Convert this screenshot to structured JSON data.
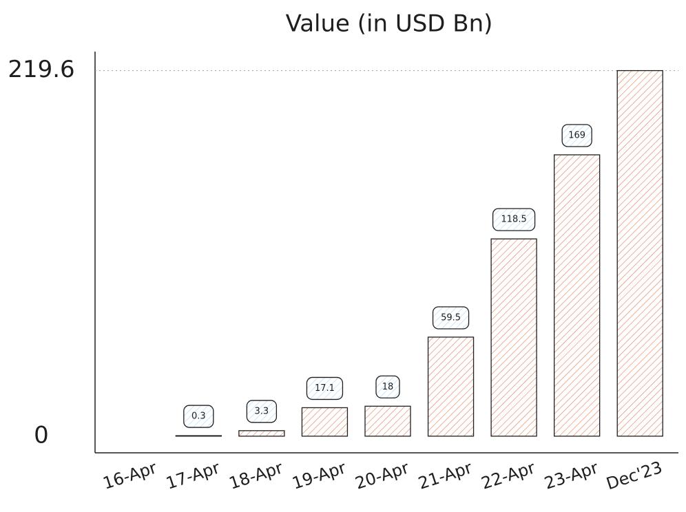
{
  "chart_data": {
    "type": "bar",
    "title": "Value (in USD Bn)",
    "categories": [
      "16-Apr",
      "17-Apr",
      "18-Apr",
      "19-Apr",
      "20-Apr",
      "21-Apr",
      "22-Apr",
      "23-Apr",
      "Dec'23"
    ],
    "values": [
      0,
      0.3,
      3.3,
      17.1,
      18,
      59.5,
      118.5,
      169,
      219.6
    ],
    "value_labels": [
      null,
      "0.3",
      "3.3",
      "17.1",
      "18",
      "59.5",
      "118.5",
      "169",
      null
    ],
    "color": "#e8845a",
    "label_color": "#a5d8ff",
    "ylim": [
      -10,
      231
    ],
    "yticks": [
      0,
      219.6
    ],
    "gridlines": [
      219.6
    ]
  }
}
